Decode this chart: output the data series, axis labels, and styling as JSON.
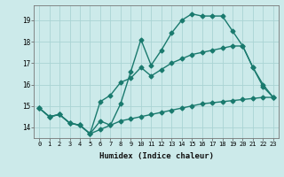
{
  "line1_x": [
    0,
    1,
    2,
    3,
    4,
    5,
    6,
    7,
    8,
    9,
    10,
    11,
    12,
    13,
    14,
    15,
    16,
    17,
    18,
    19,
    20,
    21,
    22,
    23
  ],
  "line1_y": [
    14.9,
    14.5,
    14.6,
    14.2,
    14.1,
    13.7,
    14.3,
    14.1,
    15.1,
    16.6,
    18.1,
    16.9,
    17.6,
    18.4,
    19.0,
    19.3,
    19.2,
    19.2,
    19.2,
    18.5,
    17.8,
    16.8,
    16.0,
    15.4
  ],
  "line2_x": [
    0,
    1,
    2,
    3,
    4,
    5,
    6,
    7,
    8,
    9,
    10,
    11,
    12,
    13,
    14,
    15,
    16,
    17,
    18,
    19,
    20,
    21,
    22,
    23
  ],
  "line2_y": [
    14.9,
    14.5,
    14.6,
    14.2,
    14.1,
    13.7,
    15.2,
    15.5,
    16.1,
    16.3,
    16.8,
    16.4,
    16.7,
    17.0,
    17.2,
    17.4,
    17.5,
    17.6,
    17.7,
    17.8,
    17.8,
    16.8,
    15.9,
    15.4
  ],
  "line3_x": [
    0,
    1,
    2,
    3,
    4,
    5,
    6,
    7,
    8,
    9,
    10,
    11,
    12,
    13,
    14,
    15,
    16,
    17,
    18,
    19,
    20,
    21,
    22,
    23
  ],
  "line3_y": [
    14.9,
    14.5,
    14.6,
    14.2,
    14.1,
    13.7,
    13.9,
    14.1,
    14.3,
    14.4,
    14.5,
    14.6,
    14.7,
    14.8,
    14.9,
    15.0,
    15.1,
    15.15,
    15.2,
    15.25,
    15.3,
    15.35,
    15.4,
    15.4
  ],
  "line_color": "#1a7a6e",
  "bg_color": "#cceaea",
  "grid_color": "#aad4d4",
  "xlabel": "Humidex (Indice chaleur)",
  "xlim": [
    -0.5,
    23.5
  ],
  "ylim": [
    13.5,
    19.7
  ],
  "yticks": [
    14,
    15,
    16,
    17,
    18,
    19
  ],
  "xticks": [
    0,
    1,
    2,
    3,
    4,
    5,
    6,
    7,
    8,
    9,
    10,
    11,
    12,
    13,
    14,
    15,
    16,
    17,
    18,
    19,
    20,
    21,
    22,
    23
  ],
  "marker": "D",
  "markersize": 2.5,
  "linewidth": 1.0
}
